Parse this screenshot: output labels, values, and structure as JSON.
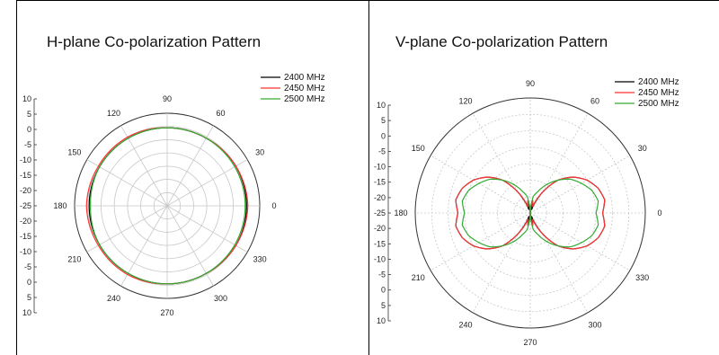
{
  "chart_data": [
    {
      "type": "polar",
      "title": "H-plane Co-polarization Pattern",
      "angle_labels": [
        "0",
        "30",
        "60",
        "90",
        "120",
        "150",
        "180",
        "210",
        "240",
        "270",
        "300",
        "330"
      ],
      "radial_labels": [
        "10",
        "5",
        "0",
        "-5",
        "-10",
        "-15",
        "-20",
        "-25",
        "-20",
        "-15",
        "-10",
        "-5",
        "0",
        "5",
        "10"
      ],
      "radial_range": [
        -25,
        10
      ],
      "legend_position": "top-right",
      "series": [
        {
          "name": "2400 MHz",
          "color": "#000000",
          "angles": [
            0,
            30,
            60,
            90,
            120,
            150,
            180,
            210,
            240,
            270,
            300,
            330
          ],
          "values": [
            5,
            5,
            4.5,
            4.5,
            4.5,
            4.5,
            4.5,
            4.5,
            4.5,
            4.5,
            4.5,
            5
          ]
        },
        {
          "name": "2450 MHz",
          "color": "#ff3333",
          "angles": [
            0,
            30,
            60,
            90,
            120,
            150,
            180,
            210,
            240,
            270,
            300,
            330
          ],
          "values": [
            5.5,
            5,
            4.5,
            4.5,
            5,
            5,
            5.5,
            5,
            5,
            4.5,
            4.5,
            5
          ]
        },
        {
          "name": "2500 MHz",
          "color": "#33aa33",
          "angles": [
            0,
            30,
            60,
            90,
            120,
            150,
            180,
            210,
            240,
            270,
            300,
            330
          ],
          "values": [
            4.5,
            4.5,
            4.5,
            4.5,
            4.5,
            4.5,
            4,
            4.5,
            4.5,
            4.5,
            4.5,
            4.5
          ]
        }
      ]
    },
    {
      "type": "polar",
      "title": "V-plane Co-polarization Pattern",
      "angle_labels": [
        "0",
        "30",
        "60",
        "90",
        "120",
        "150",
        "180",
        "210",
        "240",
        "270",
        "300",
        "330"
      ],
      "radial_labels": [
        "10",
        "5",
        "0",
        "-5",
        "-10",
        "-15",
        "-20",
        "-25",
        "-20",
        "-15",
        "-10",
        "-5",
        "0",
        "5",
        "10"
      ],
      "radial_range": [
        -25,
        10
      ],
      "legend_position": "top-right",
      "series": [
        {
          "name": "2400 MHz",
          "color": "#000000",
          "angles": [
            0,
            10,
            20,
            30,
            40,
            50,
            60,
            70,
            80,
            90,
            100,
            110,
            120,
            130,
            140,
            150,
            160,
            170,
            180,
            190,
            200,
            210,
            220,
            230,
            240,
            250,
            260,
            270,
            280,
            290,
            300,
            310,
            320,
            330,
            340,
            350
          ],
          "values": [
            -3,
            -2,
            -3,
            -5,
            -8,
            -12,
            -18,
            -24,
            -21,
            -27,
            -21,
            -24,
            -18,
            -12,
            -8,
            -5,
            -3,
            -2,
            -3,
            -2,
            -3,
            -5,
            -8,
            -12,
            -18,
            -24,
            -21,
            -27,
            -21,
            -24,
            -18,
            -12,
            -8,
            -5,
            -3,
            -2
          ]
        },
        {
          "name": "2450 MHz",
          "color": "#ff3333",
          "angles": [
            0,
            10,
            20,
            30,
            40,
            50,
            60,
            70,
            80,
            90,
            100,
            110,
            120,
            130,
            140,
            150,
            160,
            170,
            180,
            190,
            200,
            210,
            220,
            230,
            240,
            250,
            260,
            270,
            280,
            290,
            300,
            310,
            320,
            330,
            340,
            350
          ],
          "values": [
            -3,
            -2,
            -3,
            -5,
            -8,
            -12,
            -18,
            -23,
            -21,
            -27,
            -21,
            -23,
            -18,
            -12,
            -8,
            -5,
            -3,
            -2,
            -3,
            -2,
            -3,
            -5,
            -8,
            -12,
            -18,
            -23,
            -21,
            -27,
            -21,
            -23,
            -18,
            -12,
            -8,
            -5,
            -3,
            -2
          ]
        },
        {
          "name": "2500 MHz",
          "color": "#33aa33",
          "angles": [
            0,
            10,
            20,
            30,
            40,
            50,
            60,
            70,
            80,
            90,
            100,
            110,
            120,
            130,
            140,
            150,
            160,
            170,
            180,
            190,
            200,
            210,
            220,
            230,
            240,
            250,
            260,
            270,
            280,
            290,
            300,
            310,
            320,
            330,
            340,
            350
          ],
          "values": [
            -5,
            -4,
            -5,
            -7,
            -9,
            -12,
            -15,
            -18,
            -20,
            -27,
            -20,
            -18,
            -15,
            -12,
            -9,
            -7,
            -5,
            -4,
            -5,
            -4,
            -5,
            -7,
            -9,
            -12,
            -15,
            -18,
            -20,
            -27,
            -20,
            -18,
            -15,
            -12,
            -9,
            -7,
            -5,
            -4
          ]
        }
      ]
    }
  ]
}
